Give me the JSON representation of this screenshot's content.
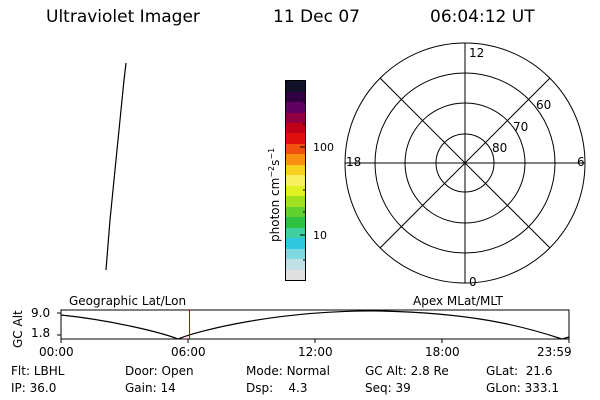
{
  "header": {
    "instrument": "Ultraviolet Imager",
    "date": "11 Dec 07",
    "time": "06:04:12 UT"
  },
  "colorbar": {
    "label_prefix": "photon cm",
    "label_exp1": "−2",
    "label_mid": "s",
    "label_exp2": "−1",
    "tick_high": "100",
    "tick_low": "10",
    "colors": [
      "#e0e0e0",
      "#c0e0e8",
      "#80d8e0",
      "#30c8e0",
      "#40d0a0",
      "#30c040",
      "#60d030",
      "#a0e020",
      "#e0f020",
      "#f8f060",
      "#f8d020",
      "#f89010",
      "#f05010",
      "#e01010",
      "#c00018",
      "#900040",
      "#600060",
      "#300040",
      "#101028"
    ]
  },
  "polar": {
    "mlt_top": "12",
    "mlt_left": "18",
    "mlt_right": "6",
    "mlt_bottom": "0",
    "lat_60": "60",
    "lat_70": "70",
    "lat_80": "80"
  },
  "strip": {
    "left_label": "Geographic Lat/Lon",
    "right_label": "Apex MLat/MLT",
    "y_axis_label": "GC Alt",
    "y_max": "9.0",
    "y_min": "1.8",
    "x_ticks": [
      "00:00",
      "06:00",
      "12:00",
      "18:00",
      "23:59"
    ],
    "current_time_hours": 6.07
  },
  "status": {
    "flt_label": "Flt:",
    "flt_value": "LBHL",
    "door_label": "Door:",
    "door_value": "Open",
    "mode_label": "Mode:",
    "mode_value": "Normal",
    "gcalt_label": "GC Alt:",
    "gcalt_value": "2.8 Re",
    "glat_label": "GLat:",
    "glat_value": "21.6",
    "ip_label": "IP:",
    "ip_value": "36.0",
    "gain_label": "Gain:",
    "gain_value": "14",
    "dsp_label": "Dsp:",
    "dsp_value": "4.3",
    "seq_label": "Seq:",
    "seq_value": "39",
    "glon_label": "GLon:",
    "glon_value": "333.1"
  }
}
